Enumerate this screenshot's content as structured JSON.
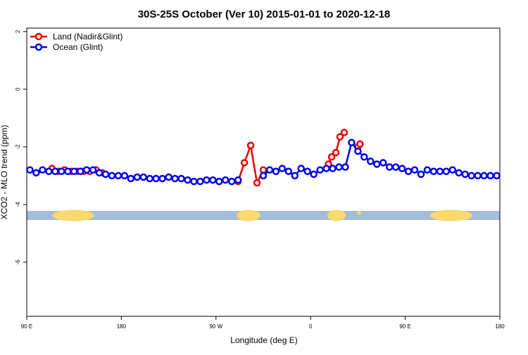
{
  "chart_data": {
    "type": "line",
    "title": "30S-25S October (Ver 10)   2015-01-01 to 2020-12-18",
    "xlabel": "Longitude (deg E)",
    "ylabel": "XCO2 - MLO trend (ppm)",
    "xlim": [
      90,
      540
    ],
    "xticks": [
      {
        "value": 90,
        "label": "90 E"
      },
      180,
      {
        "value": 270,
        "label": "90 W"
      },
      {
        "value": 360,
        "label": "0"
      },
      {
        "value": 450,
        "label": "90 E"
      },
      {
        "value": 540,
        "label": "180"
      }
    ],
    "ylim": [
      -7.88,
      2.12
    ],
    "yticks": [
      2,
      0,
      -2,
      -4,
      -6
    ],
    "legend": "top-left",
    "series": [
      {
        "name": "Land (Nadir&Glint)",
        "color": "#ee0000",
        "x": [
          114,
          120,
          126,
          132,
          138,
          144,
          150,
          156,
          162,
          168,
          291,
          297,
          303,
          309,
          315,
          321,
          377,
          380,
          384,
          388,
          392,
          398,
          405,
          407
        ],
        "values": [
          -2.75,
          -2.85,
          -2.8,
          -2.85,
          -2.85,
          -2.85,
          -2.85,
          -2.8,
          -2.9,
          null,
          -3.2,
          -2.55,
          -1.95,
          -3.25,
          -2.8,
          null,
          -2.6,
          -2.35,
          -2.2,
          -1.65,
          -1.5,
          null,
          -2.0,
          -1.9
        ]
      },
      {
        "name": "Ocean (Glint)",
        "color": "#0000ee",
        "x": [
          93,
          99,
          105,
          111,
          117,
          123,
          129,
          135,
          141,
          147,
          153,
          159,
          165,
          171,
          177,
          183,
          189,
          195,
          201,
          207,
          213,
          219,
          225,
          231,
          237,
          243,
          249,
          255,
          261,
          267,
          273,
          279,
          285,
          291,
          297,
          315,
          321,
          327,
          333,
          339,
          345,
          351,
          357,
          363,
          369,
          375,
          381,
          387,
          393,
          399,
          405,
          411,
          417,
          423,
          429,
          435,
          441,
          447,
          453,
          459,
          465,
          471,
          477,
          483,
          489,
          495,
          501,
          507,
          513,
          519,
          525,
          531,
          537
        ],
        "values": [
          -2.8,
          -2.9,
          -2.8,
          -2.85,
          -2.85,
          -2.85,
          -2.85,
          -2.85,
          -2.85,
          -2.8,
          -2.8,
          -2.9,
          -2.95,
          -3.0,
          -3.0,
          -3.0,
          -3.1,
          -3.05,
          -3.05,
          -3.1,
          -3.1,
          -3.1,
          -3.05,
          -3.1,
          -3.1,
          -3.15,
          -3.2,
          -3.2,
          -3.15,
          -3.15,
          -3.2,
          -3.15,
          -3.2,
          -3.15,
          null,
          -3.0,
          -2.8,
          -2.85,
          -2.75,
          -2.85,
          -3.0,
          -2.75,
          -2.85,
          -2.95,
          -2.8,
          -2.75,
          -2.75,
          -2.7,
          -2.7,
          -1.85,
          -2.15,
          -2.35,
          -2.5,
          -2.6,
          -2.55,
          -2.7,
          -2.7,
          -2.75,
          -2.85,
          -2.8,
          -2.95,
          -2.8,
          -2.85,
          -2.85,
          -2.85,
          -2.8,
          -2.9,
          -2.95,
          -3.0,
          -3.0,
          -3.0,
          -3.0,
          -3.0
        ]
      }
    ]
  }
}
